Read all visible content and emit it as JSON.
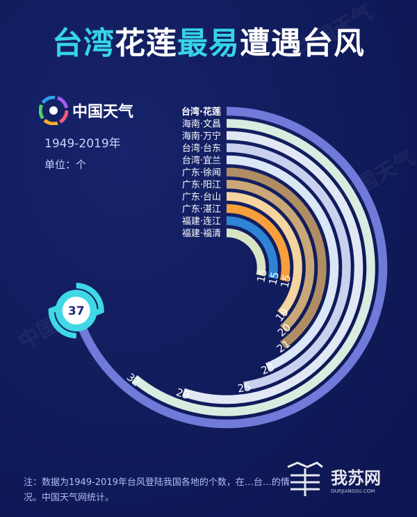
{
  "title": {
    "part1": "台湾",
    "part2": "花莲",
    "part3": "最易",
    "part4": "遭遇台风"
  },
  "brand": {
    "name": "中国天气",
    "logo_icon": "weather-swirl-logo"
  },
  "period": "1949-2019年",
  "unit": "单位：个",
  "note": "注：数据为1949-2019年台风登陆我国各地的个数，在…台…的情况。中国天气网统计。",
  "watermark": {
    "text": "我苏网",
    "sub": "OURJIANGSU.COM"
  },
  "colors": {
    "background": "#101b5a",
    "accent": "#36d5e6",
    "label_text": "#ffffff",
    "value_text": "#ffffff"
  },
  "chart_data": {
    "type": "radial-bar",
    "title": "台湾花莲最易遭遇台风",
    "categories": [
      "台湾·花莲",
      "海南·文昌",
      "海南·万宁",
      "台湾·台东",
      "台湾·宜兰",
      "广东·徐闻",
      "广东·阳江",
      "广东·台山",
      "广东·湛江",
      "福建·连江",
      "福建·福清"
    ],
    "values": [
      37,
      32,
      29,
      25,
      23,
      21,
      20,
      19,
      15,
      15,
      15
    ],
    "value_labels": [
      "37",
      "32",
      "29",
      "25",
      "23",
      "21",
      "20",
      "19",
      "15",
      "15",
      "15"
    ],
    "colors": [
      "#6f7ad9",
      "#d9ece0",
      "#e1e8f4",
      "#c9d1ef",
      "#dbe6f7",
      "#b08d63",
      "#c9a777",
      "#f4d49f",
      "#f89f3c",
      "#2f84d6",
      "#d8e5c3"
    ],
    "track_color": "#132070",
    "max": 37,
    "unit": "个"
  }
}
